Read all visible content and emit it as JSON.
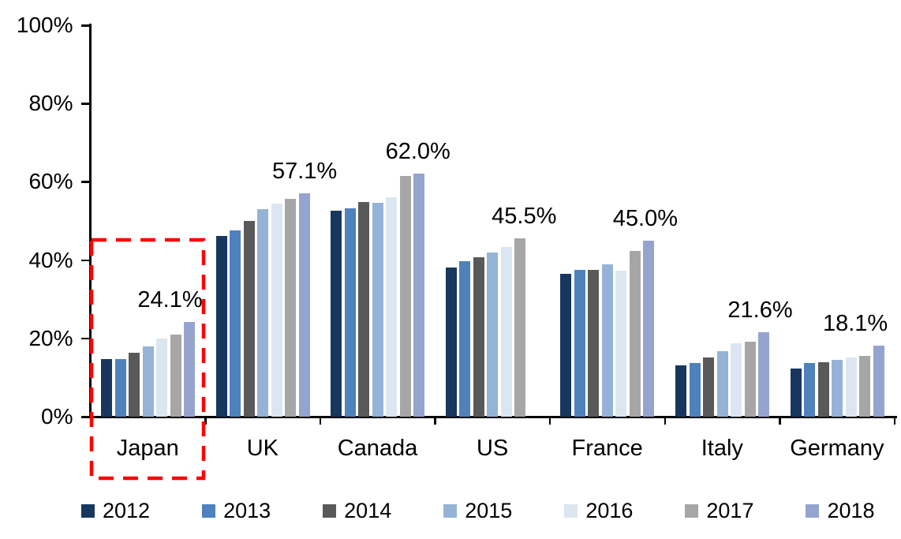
{
  "chart_data": {
    "type": "bar",
    "title": "",
    "categories": [
      "Japan",
      "UK",
      "Canada",
      "US",
      "France",
      "Italy",
      "Germany"
    ],
    "series": [
      {
        "name": "2012",
        "color": "#17375E",
        "values": [
          14.8,
          46.1,
          52.7,
          38.1,
          36.5,
          13.1,
          12.3
        ]
      },
      {
        "name": "2013",
        "color": "#4F81BD",
        "values": [
          14.8,
          47.6,
          53.2,
          39.7,
          37.5,
          13.8,
          13.7
        ]
      },
      {
        "name": "2014",
        "color": "#595959",
        "values": [
          16.4,
          49.9,
          54.8,
          40.8,
          37.5,
          15.2,
          13.9
        ]
      },
      {
        "name": "2015",
        "color": "#95B3D7",
        "values": [
          17.9,
          53.0,
          54.6,
          41.9,
          39.0,
          16.7,
          14.5
        ]
      },
      {
        "name": "2016",
        "color": "#DCE6F1",
        "values": [
          20.0,
          54.5,
          56.0,
          43.3,
          37.2,
          18.8,
          15.1
        ]
      },
      {
        "name": "2017",
        "color": "#A6A6A6",
        "values": [
          20.9,
          55.7,
          61.5,
          45.5,
          42.3,
          19.1,
          15.6
        ]
      },
      {
        "name": "2018",
        "color": "#95A4CE",
        "values": [
          24.1,
          57.1,
          62.0,
          null,
          45.0,
          21.6,
          18.1
        ]
      }
    ],
    "data_labels": [
      "24.1%",
      "57.1%",
      "62.0%",
      "45.5%",
      "45.0%",
      "21.6%",
      "18.1%"
    ],
    "y_axis": {
      "ticks": [
        "0%",
        "20%",
        "40%",
        "60%",
        "80%",
        "100%"
      ],
      "min": 0,
      "max": 100,
      "unit": "%",
      "grid": false
    },
    "x_axis": {
      "labels": [
        "Japan",
        "UK",
        "Canada",
        "US",
        "France",
        "Italy",
        "Germany"
      ]
    },
    "legend": {
      "position": "bottom",
      "entries": [
        "2012",
        "2013",
        "2014",
        "2015",
        "2016",
        "2017",
        "2018"
      ]
    },
    "highlight": {
      "category": "Japan",
      "shape": "dashed-rectangle",
      "color": "#FF0000"
    }
  }
}
